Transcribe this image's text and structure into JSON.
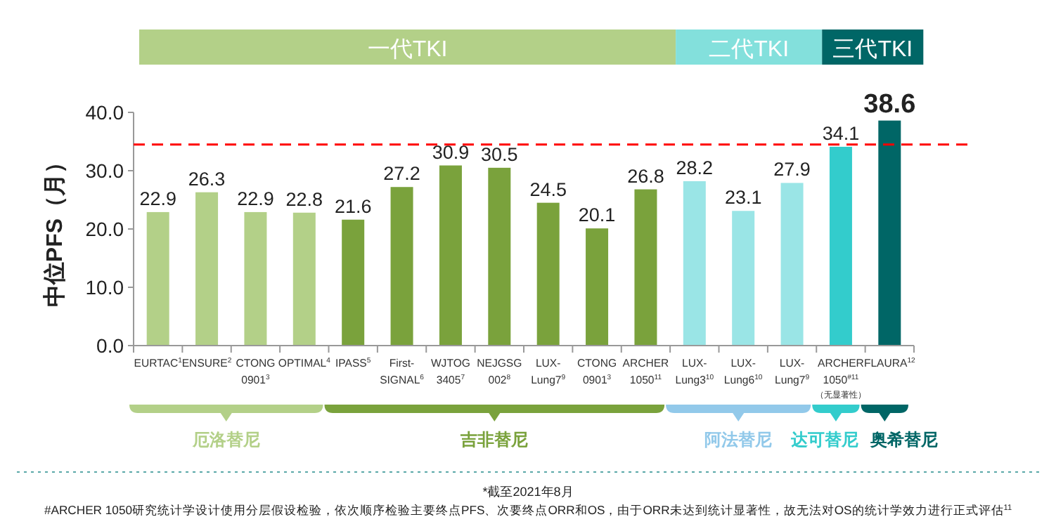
{
  "chart_data": {
    "type": "bar",
    "ylabel": "中位PFS（月）",
    "categories": [
      "EURTAC$^{1}$",
      "ENSURE$^{2}$",
      "CTONG\n0901$^{3}$",
      "OPTIMAL$^{4}$",
      "IPASS$^{5}$",
      "First-\nSIGNAL$^{6}$",
      "WJTOG\n3405$^{7}$",
      "NEJGSG\n002$^{8}$",
      "LUX-\nLung7$^{9}$",
      "CTONG\n0901$^{3}$",
      "ARCHER\n1050$^{11}$",
      "LUX-\nLung3$^{10}$",
      "LUX-\nLung6$^{10}$",
      "LUX-\nLung7$^{9}$",
      "ARCHER\n1050$^{#11}$",
      "FLAURA$^{12}$"
    ],
    "values": [
      22.9,
      26.3,
      22.9,
      22.8,
      21.6,
      27.2,
      30.9,
      30.5,
      24.5,
      20.1,
      26.8,
      28.2,
      23.1,
      27.9,
      34.1,
      38.6
    ],
    "colors": [
      "#b3d088",
      "#b3d088",
      "#b3d088",
      "#b3d088",
      "#7aa23c",
      "#7aa23c",
      "#7aa23c",
      "#7aa23c",
      "#7aa23c",
      "#7aa23c",
      "#7aa23c",
      "#9ae5e6",
      "#9ae5e6",
      "#9ae5e6",
      "#33cccc",
      "#006666"
    ],
    "data_labels": true,
    "ylim": [
      0,
      40
    ],
    "yticks": [
      {
        "value": 0,
        "label": "0.0"
      },
      {
        "value": 10,
        "label": "10.0"
      },
      {
        "value": 20,
        "label": "20.0"
      },
      {
        "value": 30,
        "label": "30.0"
      },
      {
        "value": 40,
        "label": "40.0"
      }
    ],
    "ref_lines": [
      {
        "axis": "y",
        "value": 34.5,
        "color": "#ff0000",
        "line_style": "dashed"
      }
    ],
    "grid": false,
    "annotations": [
      "一代TKI",
      "二代TKI",
      "三代TKI",
      "厄洛替尼",
      "吉非替尼",
      "阿法替尼",
      "达可替尼",
      "奥希替尼",
      "（无显著性）",
      "*截至2021年8月",
      "#ARCHER 1050研究统计学设计使用分层假设检验，依次顺序检验主要终点PFS、次要终点ORR和OS，由于ORR未达到统计显著性，故无法对OS的统计学效力进行正式评估$^{11}$"
    ]
  }
}
